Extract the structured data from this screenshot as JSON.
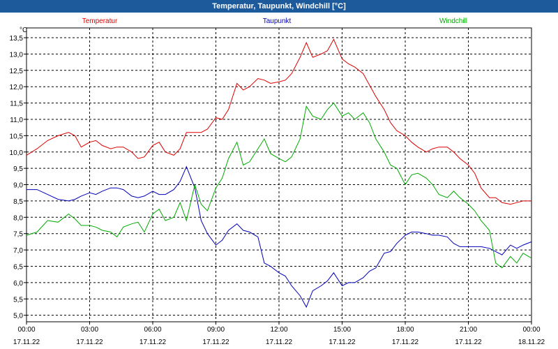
{
  "window": {
    "title": "Temperatur, Taupunkt, Windchill [°C]"
  },
  "chart_data": {
    "type": "line",
    "title": "Temperatur, Taupunkt, Windchill [°C]",
    "yunit": "°C",
    "ylim": [
      4.8,
      13.8
    ],
    "xlim": [
      0,
      24
    ],
    "grid": true,
    "yticks": [
      "5,0",
      "5,5",
      "6,0",
      "6,5",
      "7,0",
      "7,5",
      "8,0",
      "8,5",
      "9,0",
      "9,5",
      "10,0",
      "10,5",
      "11,0",
      "11,5",
      "12,0",
      "12,5",
      "13,0",
      "13,5"
    ],
    "xticks": [
      {
        "time": "00:00",
        "date": "17.11.22"
      },
      {
        "time": "03:00",
        "date": "17.11.22"
      },
      {
        "time": "06:00",
        "date": "17.11.22"
      },
      {
        "time": "09:00",
        "date": "17.11.22"
      },
      {
        "time": "12:00",
        "date": "17.11.22"
      },
      {
        "time": "15:00",
        "date": "17.11.22"
      },
      {
        "time": "18:00",
        "date": "17.11.22"
      },
      {
        "time": "21:00",
        "date": "17.11.22"
      },
      {
        "time": "00:00",
        "date": "18.11.22"
      }
    ],
    "series": [
      {
        "name": "Temperatur",
        "color": "#dd0000",
        "x": [
          0,
          0.5,
          1,
          1.5,
          2,
          2.3,
          2.6,
          3,
          3.3,
          3.6,
          4,
          4.3,
          4.6,
          5,
          5.3,
          5.6,
          6,
          6.3,
          6.6,
          7,
          7.3,
          7.6,
          8,
          8.3,
          8.6,
          9,
          9.3,
          9.6,
          10,
          10.3,
          10.6,
          11,
          11.3,
          11.6,
          12,
          12.3,
          12.6,
          13,
          13.3,
          13.6,
          14,
          14.3,
          14.6,
          15,
          15.3,
          15.6,
          16,
          16.3,
          16.6,
          17,
          17.3,
          17.6,
          18,
          18.3,
          18.6,
          19,
          19.3,
          19.6,
          20,
          20.3,
          20.6,
          21,
          21.3,
          21.6,
          22,
          22.3,
          22.6,
          23,
          23.3,
          23.6,
          24
        ],
        "y": [
          9.9,
          10.1,
          10.35,
          10.5,
          10.6,
          10.5,
          10.15,
          10.3,
          10.35,
          10.2,
          10.1,
          10.15,
          10.15,
          10.0,
          9.8,
          9.85,
          10.2,
          10.3,
          10.0,
          9.9,
          10.1,
          10.6,
          10.6,
          10.6,
          10.7,
          11.05,
          11.0,
          11.3,
          12.1,
          11.9,
          12.0,
          12.25,
          12.2,
          12.1,
          12.15,
          12.2,
          12.4,
          12.9,
          13.35,
          12.9,
          13.0,
          13.1,
          13.45,
          12.85,
          12.7,
          12.6,
          12.4,
          12.05,
          11.7,
          11.3,
          10.9,
          10.65,
          10.5,
          10.3,
          10.15,
          10.0,
          10.1,
          10.15,
          10.15,
          10.0,
          9.8,
          9.6,
          9.35,
          8.9,
          8.6,
          8.6,
          8.45,
          8.4,
          8.45,
          8.5,
          8.5
        ]
      },
      {
        "name": "Taupunkt",
        "color": "#0000bb",
        "x": [
          0,
          0.5,
          1,
          1.5,
          2,
          2.3,
          2.6,
          3,
          3.3,
          3.6,
          4,
          4.3,
          4.6,
          5,
          5.3,
          5.6,
          6,
          6.3,
          6.6,
          7,
          7.3,
          7.6,
          8,
          8.3,
          8.6,
          9,
          9.3,
          9.6,
          10,
          10.3,
          10.6,
          11,
          11.3,
          11.6,
          12,
          12.3,
          12.6,
          13,
          13.3,
          13.6,
          14,
          14.3,
          14.6,
          15,
          15.3,
          15.6,
          16,
          16.3,
          16.6,
          17,
          17.3,
          17.6,
          18,
          18.3,
          18.6,
          19,
          19.3,
          19.6,
          20,
          20.3,
          20.6,
          21,
          21.3,
          21.6,
          22,
          22.3,
          22.6,
          23,
          23.3,
          23.6,
          24
        ],
        "y": [
          8.85,
          8.85,
          8.7,
          8.55,
          8.5,
          8.55,
          8.65,
          8.75,
          8.7,
          8.8,
          8.9,
          8.9,
          8.85,
          8.65,
          8.6,
          8.65,
          8.8,
          8.7,
          8.7,
          8.85,
          9.1,
          9.55,
          8.9,
          7.9,
          7.5,
          7.15,
          7.3,
          7.6,
          7.8,
          7.6,
          7.55,
          7.4,
          6.6,
          6.5,
          6.3,
          6.2,
          5.9,
          5.6,
          5.25,
          5.75,
          5.9,
          6.05,
          6.3,
          5.9,
          6.0,
          6.0,
          6.15,
          6.35,
          6.45,
          6.9,
          6.95,
          7.2,
          7.45,
          7.55,
          7.55,
          7.5,
          7.45,
          7.45,
          7.4,
          7.2,
          7.1,
          7.1,
          7.1,
          7.1,
          7.05,
          6.95,
          6.85,
          7.15,
          7.05,
          7.15,
          7.25
        ]
      },
      {
        "name": "Windchill",
        "color": "#00aa00",
        "x": [
          0,
          0.5,
          1,
          1.5,
          2,
          2.3,
          2.6,
          3,
          3.3,
          3.6,
          4,
          4.3,
          4.6,
          5,
          5.3,
          5.6,
          6,
          6.3,
          6.6,
          7,
          7.3,
          7.6,
          8,
          8.3,
          8.6,
          9,
          9.3,
          9.6,
          10,
          10.3,
          10.6,
          11,
          11.3,
          11.6,
          12,
          12.3,
          12.6,
          13,
          13.3,
          13.6,
          14,
          14.3,
          14.6,
          15,
          15.3,
          15.6,
          16,
          16.3,
          16.6,
          17,
          17.3,
          17.6,
          18,
          18.3,
          18.6,
          19,
          19.3,
          19.6,
          20,
          20.3,
          20.6,
          21,
          21.3,
          21.6,
          22,
          22.3,
          22.6,
          23,
          23.3,
          23.6,
          24
        ],
        "y": [
          7.45,
          7.55,
          7.9,
          7.85,
          8.1,
          7.95,
          7.75,
          7.75,
          7.7,
          7.6,
          7.55,
          7.4,
          7.7,
          7.8,
          7.85,
          7.55,
          8.1,
          8.25,
          7.9,
          8.0,
          8.45,
          7.9,
          9.0,
          8.4,
          8.2,
          8.9,
          9.2,
          9.8,
          10.3,
          9.6,
          9.7,
          10.1,
          10.4,
          9.95,
          9.8,
          9.7,
          9.85,
          10.4,
          11.4,
          11.1,
          11.0,
          11.3,
          11.5,
          11.1,
          11.2,
          11.0,
          11.2,
          10.9,
          10.4,
          10.0,
          9.6,
          9.5,
          9.0,
          9.3,
          9.35,
          9.2,
          9.0,
          8.7,
          8.6,
          8.8,
          8.6,
          8.4,
          8.2,
          7.9,
          7.6,
          6.6,
          6.45,
          6.8,
          6.6,
          6.9,
          6.75
        ]
      }
    ]
  }
}
